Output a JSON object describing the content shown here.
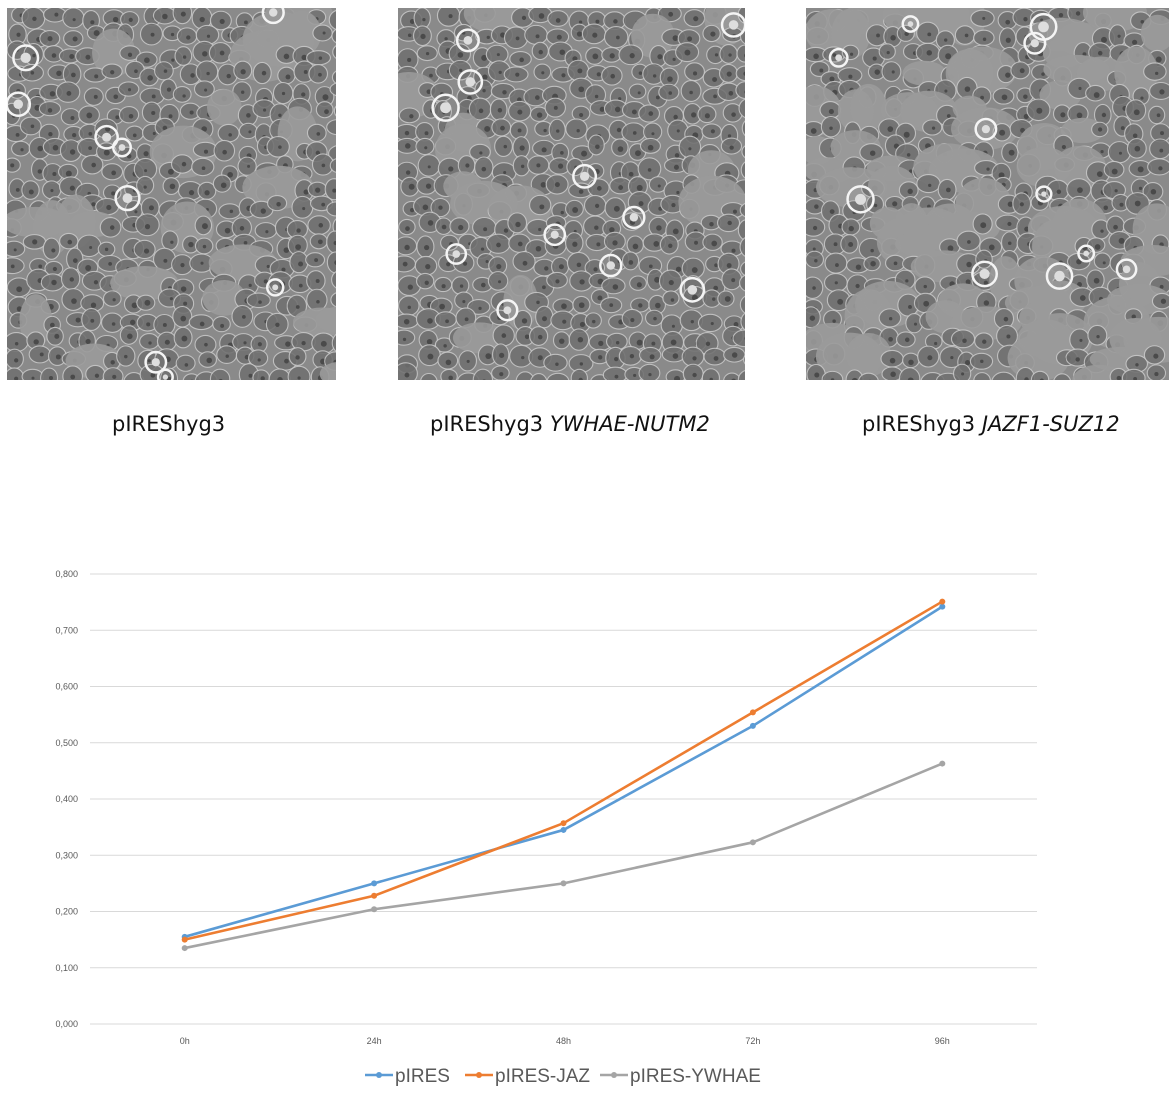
{
  "panels": [
    {
      "caption_plain": "pIREShyg3",
      "caption_italic": "",
      "variant": "a"
    },
    {
      "caption_plain": "pIREShyg3 ",
      "caption_italic": "YWHAE-NUTM2",
      "variant": "b"
    },
    {
      "caption_plain": "pIREShyg3 ",
      "caption_italic": "JAZF1-SUZ12",
      "variant": "c"
    }
  ],
  "chart_data": {
    "type": "line",
    "categories": [
      "0h",
      "24h",
      "48h",
      "72h",
      "96h"
    ],
    "ylim": [
      0,
      0.8
    ],
    "yticks": [
      "0,000",
      "0,100",
      "0,200",
      "0,300",
      "0,400",
      "0,500",
      "0,600",
      "0,700",
      "0,800"
    ],
    "grid": true,
    "legend_position": "bottom",
    "series": [
      {
        "name": "pIRES",
        "color": "#5b9bd5",
        "values": [
          0.155,
          0.25,
          0.345,
          0.53,
          0.742
        ]
      },
      {
        "name": "pIRES-JAZ",
        "color": "#ed7d31",
        "values": [
          0.15,
          0.228,
          0.357,
          0.554,
          0.751
        ]
      },
      {
        "name": "pIRES-YWHAE",
        "color": "#a5a5a5",
        "values": [
          0.135,
          0.204,
          0.25,
          0.323,
          0.463
        ]
      }
    ]
  }
}
